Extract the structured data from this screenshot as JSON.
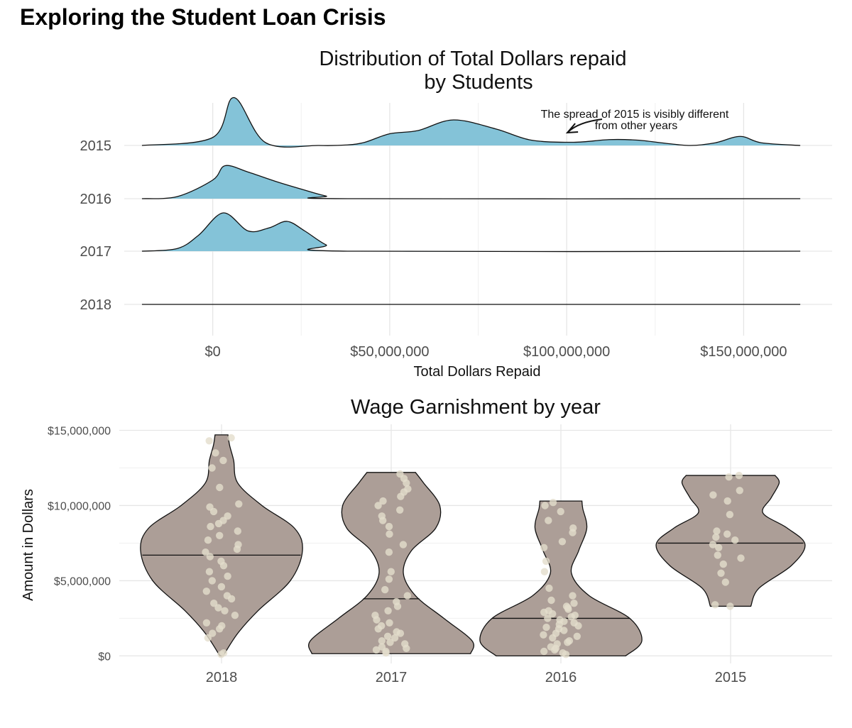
{
  "page": {
    "title": "Exploring the Student Loan Crisis"
  },
  "chart_data": [
    {
      "type": "ridgeline",
      "title_lines": [
        "Distribution of Total Dollars repaid",
        "by Students"
      ],
      "xlabel": "Total Dollars Repaid",
      "ylabel": "",
      "xlim": [
        -25000000,
        175000000
      ],
      "x_ticks": [
        0,
        50000000,
        100000000,
        150000000
      ],
      "x_tick_labels": [
        "$0",
        "$50,000,000",
        "$100,000,000",
        "$150,000,000"
      ],
      "categories": [
        "2015",
        "2016",
        "2017",
        "2018"
      ],
      "fill": "#84c3d8",
      "grid": true,
      "annotation": {
        "lines": [
          "The spread of 2015 is visibly different",
          "from other years"
        ],
        "points_to_x": 100000000,
        "series": "2015"
      },
      "series": [
        {
          "name": "2015",
          "x": [
            -20000000,
            0,
            6000000,
            15000000,
            30000000,
            38000000,
            43000000,
            50000000,
            58000000,
            68000000,
            80000000,
            90000000,
            102000000,
            112000000,
            120000000,
            128000000,
            135000000,
            142000000,
            149000000,
            155000000,
            166000000
          ],
          "density": [
            0,
            0.15,
            0.9,
            0.05,
            0.0,
            0.01,
            0.06,
            0.22,
            0.28,
            0.48,
            0.31,
            0.1,
            0.06,
            0.11,
            0.1,
            0.04,
            0.0,
            0.05,
            0.17,
            0.05,
            0
          ]
        },
        {
          "name": "2016",
          "x": [
            -20000000,
            -10000000,
            0,
            3500000,
            10000000,
            18000000,
            25000000,
            32000000,
            38000000,
            166000000
          ],
          "density": [
            0,
            0.04,
            0.35,
            0.62,
            0.5,
            0.32,
            0.18,
            0.05,
            0,
            0
          ]
        },
        {
          "name": "2017",
          "x": [
            -20000000,
            -10000000,
            -4000000,
            3000000,
            10000000,
            16000000,
            21000000,
            26000000,
            32000000,
            38000000,
            166000000
          ],
          "density": [
            0,
            0.05,
            0.3,
            0.72,
            0.38,
            0.44,
            0.56,
            0.38,
            0.12,
            0,
            0
          ]
        },
        {
          "name": "2018",
          "x": [
            -20000000,
            166000000
          ],
          "density": [
            0,
            0
          ]
        }
      ]
    },
    {
      "type": "violin",
      "title": "Wage Garnishment by year",
      "xlabel": "",
      "ylabel": "Amount in Dollars",
      "ylim": [
        -500000,
        15400000
      ],
      "y_ticks": [
        0,
        5000000,
        10000000,
        15000000
      ],
      "y_tick_labels": [
        "$0",
        "$5,000,000",
        "$10,000,000",
        "$15,000,000"
      ],
      "categories": [
        "2018",
        "2017",
        "2016",
        "2015"
      ],
      "fill": "#ac9e97",
      "point_color": "#e4ddcc",
      "grid": true,
      "violins": [
        {
          "category": "2018",
          "median": 6700000,
          "profile": [
            [
              0,
              0.02
            ],
            [
              1500000,
              0.2
            ],
            [
              3000000,
              0.45
            ],
            [
              5000000,
              0.85
            ],
            [
              7000000,
              1.0
            ],
            [
              8500000,
              0.9
            ],
            [
              10000000,
              0.5
            ],
            [
              11500000,
              0.2
            ],
            [
              13000000,
              0.15
            ],
            [
              14000000,
              0.1
            ],
            [
              14700000,
              0.08
            ]
          ]
        },
        {
          "category": "2017",
          "median": 3800000,
          "profile": [
            [
              150000,
              0.98
            ],
            [
              1000000,
              1.0
            ],
            [
              2500000,
              0.65
            ],
            [
              4000000,
              0.3
            ],
            [
              5500000,
              0.15
            ],
            [
              7000000,
              0.25
            ],
            [
              8500000,
              0.55
            ],
            [
              10000000,
              0.6
            ],
            [
              11500000,
              0.4
            ],
            [
              12200000,
              0.3
            ]
          ]
        },
        {
          "category": "2016",
          "median": 2500000,
          "profile": [
            [
              0,
              0.8
            ],
            [
              1000000,
              1.0
            ],
            [
              2500000,
              0.85
            ],
            [
              4000000,
              0.35
            ],
            [
              5500000,
              0.13
            ],
            [
              7000000,
              0.22
            ],
            [
              8500000,
              0.32
            ],
            [
              9800000,
              0.27
            ],
            [
              10300000,
              0.26
            ]
          ]
        },
        {
          "category": "2015",
          "median": 7500000,
          "profile": [
            [
              3300000,
              0.25
            ],
            [
              4500000,
              0.35
            ],
            [
              6000000,
              0.75
            ],
            [
              7400000,
              0.92
            ],
            [
              8500000,
              0.7
            ],
            [
              9500000,
              0.4
            ],
            [
              10500000,
              0.5
            ],
            [
              11500000,
              0.6
            ],
            [
              12000000,
              0.55
            ]
          ]
        }
      ],
      "points": [
        {
          "category": "2018",
          "y": [
            100000,
            200000,
            1200000,
            1500000,
            1800000,
            2000000,
            2200000,
            2700000,
            3000000,
            3200000,
            3500000,
            3800000,
            4000000,
            4300000,
            4600000,
            5000000,
            5300000,
            5600000,
            6000000,
            6300000,
            6600000,
            6900000,
            7100000,
            7400000,
            7700000,
            8000000,
            8300000,
            8600000,
            8800000,
            9000000,
            9300000,
            9600000,
            9900000,
            10100000,
            11200000,
            12500000,
            13000000,
            13500000,
            14300000,
            14500000
          ]
        },
        {
          "category": "2017",
          "y": [
            200000,
            300000,
            400000,
            500000,
            600000,
            800000,
            900000,
            1000000,
            1200000,
            1300000,
            1500000,
            1600000,
            1800000,
            2000000,
            2200000,
            2400000,
            2700000,
            3000000,
            3300000,
            3600000,
            4000000,
            4400000,
            5100000,
            5600000,
            6900000,
            7400000,
            8100000,
            8600000,
            9000000,
            9300000,
            9700000,
            10000000,
            10300000,
            10600000,
            10900000,
            11100000,
            11500000,
            11800000,
            12100000
          ]
        },
        {
          "category": "2016",
          "y": [
            100000,
            200000,
            300000,
            400000,
            500000,
            600000,
            800000,
            900000,
            1000000,
            1200000,
            1300000,
            1400000,
            1500000,
            1700000,
            1800000,
            1900000,
            2000000,
            2100000,
            2200000,
            2300000,
            2400000,
            2500000,
            2600000,
            2700000,
            2800000,
            2900000,
            3000000,
            3100000,
            3200000,
            3300000,
            3500000,
            3700000,
            4000000,
            4500000,
            5600000,
            6300000,
            7200000,
            7600000,
            8200000,
            8500000,
            9000000,
            9600000,
            10000000,
            10200000
          ]
        },
        {
          "category": "2015",
          "y": [
            3300000,
            3400000,
            4900000,
            5500000,
            6100000,
            6500000,
            6700000,
            7200000,
            7400000,
            7700000,
            7900000,
            8100000,
            8300000,
            9400000,
            10300000,
            10700000,
            11000000,
            11900000,
            12000000
          ]
        }
      ]
    }
  ]
}
